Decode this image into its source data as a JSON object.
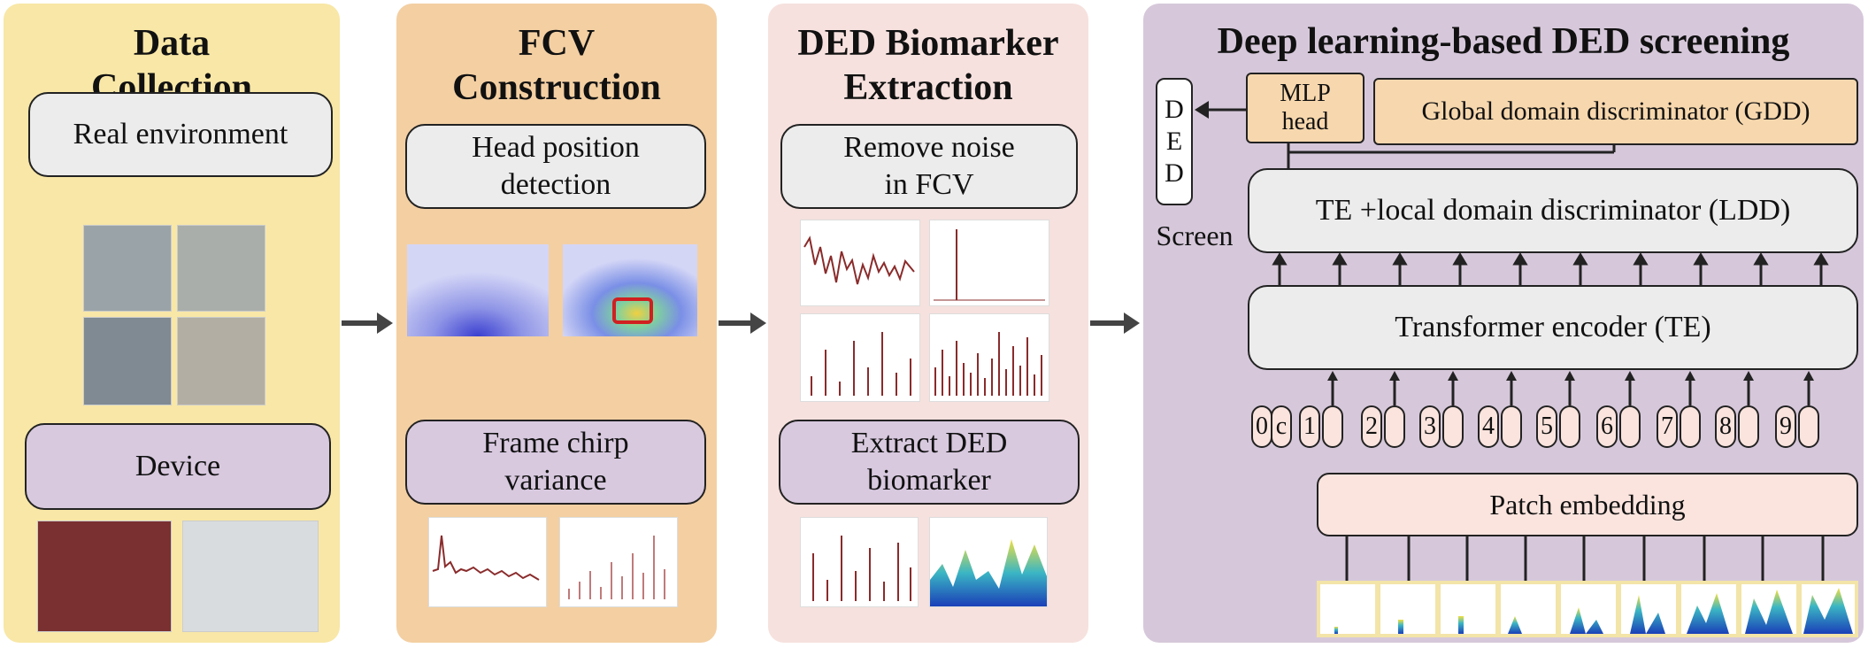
{
  "stages": [
    {
      "title_line1": "Data",
      "title_line2": "Collection",
      "box1": "Real environment",
      "box2": "Device"
    },
    {
      "title_line1": "FCV",
      "title_line2": "Construction",
      "box1_line1": "Head position",
      "box1_line2": "detection",
      "box2_line1": "Frame chirp",
      "box2_line2": "variance"
    },
    {
      "title_line1": "DED Biomarker",
      "title_line2": "Extraction",
      "box1_line1": "Remove noise",
      "box1_line2": "in FCV",
      "box2_line1": "Extract DED",
      "box2_line2": "biomarker"
    },
    {
      "title": "Deep learning-based DED screening",
      "ded_letters": [
        "D",
        "E",
        "D"
      ],
      "screen_label": "Screen",
      "mlp_line1": "MLP",
      "mlp_line2": "head",
      "gdd": "Global domain discriminator (GDD)",
      "ldd": "TE +local domain discriminator (LDD)",
      "te": "Transformer encoder (TE)",
      "patch": "Patch embedding",
      "token_zero": "0",
      "token_cls": "c",
      "token_numbers": [
        "1",
        "2",
        "3",
        "4",
        "5",
        "6",
        "7",
        "8",
        "9"
      ]
    }
  ],
  "colors": {
    "stage1_bg": "#f8e7a6",
    "stage2_bg": "#f3cfa2",
    "stage3_bg": "#f6e1de",
    "stage4_bg": "#d6c8da",
    "signal": "#8a2b2b"
  }
}
